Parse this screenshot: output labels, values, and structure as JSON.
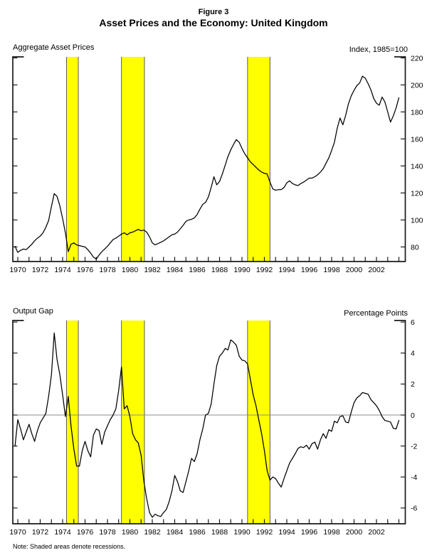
{
  "figure": {
    "label": "Figure 3",
    "title": "Asset Prices and the Economy: United Kingdom"
  },
  "note": "Note: Shaded areas denote recessions.",
  "colors": {
    "recession_band": "#ffff00",
    "band_edge": "#4a4a4a",
    "series_line": "#000000",
    "zero_line": "#8c8c8c",
    "axis": "#1a1a1a"
  },
  "recessions": [
    {
      "start": 1974.35,
      "end": 1975.4
    },
    {
      "start": 1979.25,
      "end": 1981.3
    },
    {
      "start": 1990.5,
      "end": 1992.5
    }
  ],
  "x_axis": {
    "tick_start_year": 1970,
    "tick_end_year": 2004,
    "label_years": [
      1970,
      1972,
      1974,
      1976,
      1978,
      1980,
      1982,
      1984,
      1986,
      1988,
      1990,
      1992,
      1994,
      1996,
      1998,
      2000,
      2002
    ]
  },
  "chart_data": [
    {
      "type": "line",
      "title": "Aggregate Asset Prices",
      "unit_label": "Index, 1985=100",
      "legend": "none",
      "grid": false,
      "zero_line": false,
      "ylim": [
        69,
        222.5
      ],
      "xlim": [
        1969.55,
        2004.6
      ],
      "y_ticks": [
        80,
        100,
        120,
        140,
        160,
        180,
        200,
        220
      ],
      "x_start": 1969.75,
      "x_step": 0.25,
      "values": [
        80.5,
        76,
        77.5,
        78.5,
        78,
        80,
        82,
        84.5,
        86.5,
        88,
        90.5,
        94.5,
        99.5,
        110,
        119.5,
        117.5,
        110.5,
        101,
        90.5,
        76.5,
        82,
        83,
        81.5,
        81,
        80.5,
        80,
        78,
        75.5,
        72.5,
        71,
        74,
        76.5,
        78.5,
        80.5,
        83,
        85.5,
        86.5,
        88,
        89.5,
        90.5,
        89,
        90.5,
        91,
        92,
        93,
        92,
        92.5,
        91,
        87.5,
        83,
        81.5,
        82.5,
        83.5,
        84.5,
        86,
        87.5,
        89,
        89.5,
        91,
        93.5,
        96,
        99,
        100,
        100.5,
        101.5,
        104,
        108,
        111.5,
        113,
        117,
        124,
        132,
        126,
        128.5,
        134,
        140.5,
        147,
        152,
        156,
        159.5,
        157.5,
        153,
        149,
        146,
        143,
        141,
        139,
        137,
        135.5,
        134.5,
        134,
        128,
        123,
        122,
        122.5,
        122.5,
        124,
        127.5,
        129,
        127,
        126,
        125.5,
        127,
        128,
        129.5,
        131,
        131,
        132,
        133.5,
        135.5,
        138,
        142,
        146,
        151.5,
        157.5,
        168,
        175.5,
        170.5,
        177.5,
        186,
        192,
        196,
        199.5,
        201.5,
        206.5,
        205,
        201,
        196.5,
        190,
        186.5,
        185,
        191,
        187.5,
        180,
        172.5,
        177,
        183,
        190.5
      ]
    },
    {
      "type": "line",
      "title": "Output Gap",
      "unit_label": "Percentage Points",
      "legend": "none",
      "grid": false,
      "zero_line": true,
      "ylim": [
        -7,
        6.3
      ],
      "xlim": [
        1969.55,
        2004.6
      ],
      "y_ticks": [
        -6,
        -4,
        -2,
        0,
        2,
        4,
        6
      ],
      "x_start": 1969.75,
      "x_step": 0.25,
      "values": [
        -2,
        -0.3,
        -0.9,
        -1.6,
        -1.1,
        -0.6,
        -1.2,
        -1.7,
        -1,
        -0.5,
        -0.2,
        0.1,
        1.2,
        2.6,
        5.3,
        3.6,
        2.6,
        1.3,
        -0.1,
        1.2,
        -0.7,
        -2.2,
        -3.3,
        -3.3,
        -2.3,
        -1.7,
        -2.3,
        -2.7,
        -1.3,
        -0.9,
        -1,
        -1.9,
        -1.1,
        -0.7,
        -0.3,
        0,
        0.4,
        1.6,
        3.1,
        0.4,
        0.6,
        -0.1,
        -1.2,
        -1.6,
        -1.8,
        -2.6,
        -4.3,
        -5.4,
        -6.3,
        -6.6,
        -6.4,
        -6.5,
        -6.55,
        -6.3,
        -6.1,
        -5.6,
        -4.9,
        -3.9,
        -4.3,
        -4.9,
        -5,
        -4.3,
        -3.6,
        -2.8,
        -3,
        -2.5,
        -1.6,
        -0.9,
        0,
        0.1,
        0.7,
        2,
        3.2,
        3.8,
        4,
        4.3,
        4.2,
        4.85,
        4.7,
        4.5,
        3.8,
        3.55,
        3.5,
        3.3,
        2.3,
        1.3,
        0.6,
        -0.3,
        -1.2,
        -2.3,
        -3.6,
        -4.2,
        -4,
        -4.1,
        -4.4,
        -4.65,
        -4.1,
        -3.6,
        -3.1,
        -2.8,
        -2.5,
        -2.15,
        -2.05,
        -2.1,
        -1.95,
        -2.2,
        -1.85,
        -1.75,
        -2.2,
        -1.6,
        -1.2,
        -1.5,
        -0.95,
        -1.05,
        -0.4,
        -0.5,
        -0.1,
        -0.05,
        -0.45,
        -0.5,
        0.2,
        0.8,
        1.1,
        1.25,
        1.45,
        1.4,
        1.35,
        1,
        0.8,
        0.6,
        0.3,
        -0.1,
        -0.35,
        -0.4,
        -0.45,
        -0.85,
        -0.9,
        -0.35
      ]
    }
  ]
}
